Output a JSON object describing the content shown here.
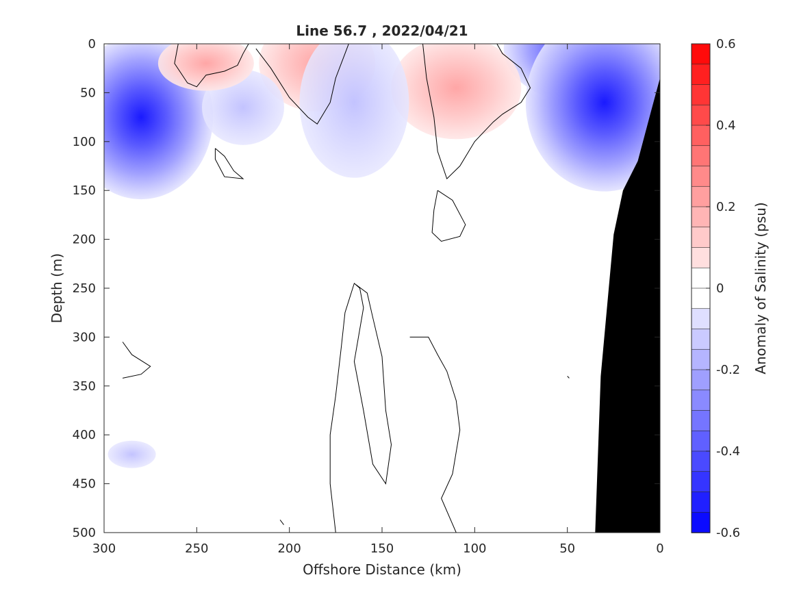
{
  "chart_data": {
    "type": "heatmap",
    "title": "Line 56.7 , 2022/04/21",
    "xlabel": "Offshore Distance (km)",
    "ylabel": "Depth (m)",
    "colorbar_label": "Anomaly of Salinity (psu)",
    "xlim": [
      300,
      0
    ],
    "ylim": [
      500,
      0
    ],
    "x_ticks": [
      300,
      250,
      200,
      150,
      100,
      50,
      0
    ],
    "y_ticks": [
      0,
      50,
      100,
      150,
      200,
      250,
      300,
      350,
      400,
      450,
      500
    ],
    "colorbar_ticks": [
      0.6,
      0.4,
      0.2,
      0,
      -0.2,
      -0.4,
      -0.6
    ],
    "colorbar_range": [
      -0.6,
      0.6
    ],
    "colorbar_levels": 24,
    "colors": {
      "positive": "#ff0000",
      "negative": "#0000ff",
      "seafloor": "#000000",
      "zero_contour": "#000000"
    },
    "anomaly_features": [
      {
        "x": 280,
        "depth": 75,
        "value": -0.5
      },
      {
        "x": 40,
        "depth": 5,
        "value": -0.45
      },
      {
        "x": 30,
        "depth": 60,
        "value": -0.3
      },
      {
        "x": 185,
        "depth": 20,
        "value": 0.15
      },
      {
        "x": 110,
        "depth": 45,
        "value": 0.18
      },
      {
        "x": 165,
        "depth": 60,
        "value": -0.12
      },
      {
        "x": 225,
        "depth": 65,
        "value": -0.1
      },
      {
        "x": 245,
        "depth": 20,
        "value": 0.07
      },
      {
        "x": 285,
        "depth": 420,
        "value": -0.05
      }
    ],
    "seafloor_profile": [
      [
        35,
        500
      ],
      [
        32,
        340
      ],
      [
        25,
        195
      ],
      [
        20,
        150
      ],
      [
        12,
        120
      ],
      [
        5,
        70
      ],
      [
        0,
        35
      ]
    ],
    "zero_contours": [
      [
        [
          260,
          0
        ],
        [
          262,
          20
        ],
        [
          255,
          40
        ],
        [
          250,
          44
        ],
        [
          245,
          32
        ],
        [
          235,
          28
        ],
        [
          228,
          22
        ],
        [
          225,
          10
        ],
        [
          222,
          0
        ]
      ],
      [
        [
          218,
          5
        ],
        [
          210,
          25
        ],
        [
          200,
          55
        ],
        [
          190,
          75
        ],
        [
          185,
          82
        ],
        [
          178,
          60
        ],
        [
          175,
          35
        ],
        [
          170,
          10
        ],
        [
          168,
          0
        ]
      ],
      [
        [
          128,
          0
        ],
        [
          126,
          35
        ],
        [
          122,
          75
        ],
        [
          120,
          110
        ],
        [
          115,
          138
        ],
        [
          108,
          125
        ],
        [
          100,
          100
        ],
        [
          90,
          80
        ],
        [
          85,
          72
        ],
        [
          75,
          60
        ],
        [
          70,
          45
        ],
        [
          75,
          25
        ],
        [
          85,
          10
        ],
        [
          88,
          0
        ]
      ],
      [
        [
          290,
          305
        ],
        [
          285,
          318
        ],
        [
          275,
          330
        ],
        [
          280,
          338
        ],
        [
          290,
          342
        ]
      ],
      [
        [
          240,
          107
        ],
        [
          235,
          115
        ],
        [
          230,
          130
        ],
        [
          225,
          138
        ],
        [
          235,
          136
        ],
        [
          240,
          118
        ],
        [
          240,
          107
        ]
      ],
      [
        [
          120,
          150
        ],
        [
          112,
          160
        ],
        [
          105,
          185
        ],
        [
          108,
          197
        ],
        [
          118,
          202
        ],
        [
          123,
          193
        ],
        [
          122,
          170
        ],
        [
          120,
          150
        ]
      ],
      [
        [
          175,
          500
        ],
        [
          178,
          450
        ],
        [
          178,
          400
        ],
        [
          175,
          360
        ],
        [
          172,
          310
        ],
        [
          170,
          275
        ],
        [
          165,
          245
        ],
        [
          158,
          255
        ],
        [
          155,
          280
        ],
        [
          150,
          320
        ],
        [
          148,
          375
        ],
        [
          145,
          410
        ],
        [
          148,
          450
        ],
        [
          155,
          430
        ],
        [
          160,
          375
        ],
        [
          165,
          325
        ],
        [
          160,
          270
        ],
        [
          162,
          250
        ],
        [
          165,
          245
        ]
      ],
      [
        [
          135,
          300
        ],
        [
          125,
          300
        ],
        [
          120,
          318
        ],
        [
          115,
          335
        ],
        [
          110,
          365
        ],
        [
          108,
          395
        ],
        [
          112,
          440
        ],
        [
          118,
          465
        ],
        [
          110,
          500
        ]
      ],
      [
        [
          50,
          340
        ],
        [
          49,
          342
        ]
      ],
      [
        [
          205,
          487
        ],
        [
          203,
          492
        ]
      ]
    ]
  }
}
